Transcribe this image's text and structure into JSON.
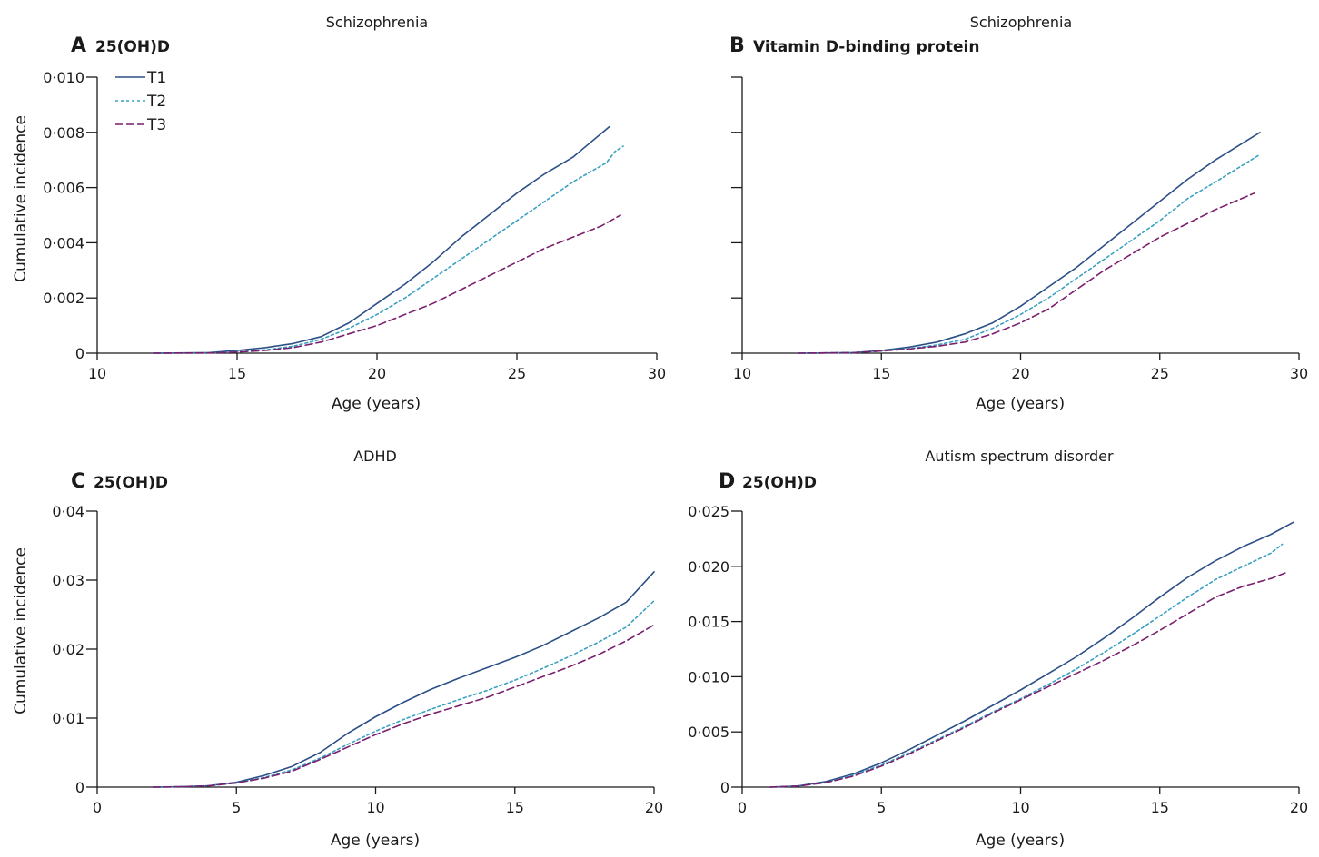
{
  "colors": {
    "T1": "#2b4f86",
    "T2": "#3aa0c2",
    "T3": "#7a1f6e",
    "axis": "#1a1a1a"
  },
  "legend": [
    {
      "label": "T1",
      "style": "solid"
    },
    {
      "label": "T2",
      "style": "dotted"
    },
    {
      "label": "T3",
      "style": "dashed"
    }
  ],
  "chart_data": [
    {
      "panel": "A",
      "type": "line",
      "title": "Schizophrenia",
      "subtitle": "25(OH)D",
      "xlabel": "Age (years)",
      "ylabel": "Cumulative incidence",
      "xlim": [
        10,
        30
      ],
      "ylim": [
        0,
        0.01
      ],
      "xticks": [
        10,
        15,
        20,
        25,
        30
      ],
      "yticks": [
        0,
        0.002,
        0.004,
        0.006,
        0.008,
        0.01
      ],
      "ytick_labels": [
        "0",
        "0·002",
        "0·004",
        "0·006",
        "0·008",
        "0·010"
      ],
      "show_ytick_labels": true,
      "show_ylabel": true,
      "show_legend": true,
      "series": [
        {
          "name": "T1",
          "x": [
            12,
            14,
            15,
            16,
            17,
            18,
            19,
            20,
            21,
            22,
            23,
            24,
            25,
            26,
            27,
            28.3
          ],
          "y": [
            0,
            2e-05,
            0.0001,
            0.0002,
            0.00035,
            0.0006,
            0.0011,
            0.0018,
            0.0025,
            0.0033,
            0.0042,
            0.005,
            0.0058,
            0.0065,
            0.0071,
            0.0082
          ]
        },
        {
          "name": "T2",
          "x": [
            12,
            14,
            15,
            16,
            17,
            18,
            19,
            20,
            21,
            22,
            23,
            24,
            25,
            26,
            27,
            28.2,
            28.5,
            28.8
          ],
          "y": [
            0,
            1e-05,
            5e-05,
            0.00012,
            0.00025,
            0.0005,
            0.0009,
            0.0014,
            0.002,
            0.0027,
            0.0034,
            0.0041,
            0.0048,
            0.0055,
            0.0062,
            0.0069,
            0.0073,
            0.0075
          ]
        },
        {
          "name": "T3",
          "x": [
            12,
            14,
            15,
            16,
            17,
            18,
            19,
            20,
            21,
            22,
            23,
            24,
            25,
            26,
            27,
            28,
            28.7
          ],
          "y": [
            0,
            1e-05,
            4e-05,
            0.0001,
            0.0002,
            0.0004,
            0.0007,
            0.001,
            0.0014,
            0.0018,
            0.0023,
            0.0028,
            0.0033,
            0.0038,
            0.0042,
            0.0046,
            0.005
          ]
        }
      ]
    },
    {
      "panel": "B",
      "type": "line",
      "title": "Schizophrenia",
      "subtitle": "Vitamin D-binding protein",
      "xlabel": "Age (years)",
      "ylabel": "",
      "xlim": [
        10,
        30
      ],
      "ylim": [
        0,
        0.01
      ],
      "xticks": [
        10,
        15,
        20,
        25,
        30
      ],
      "yticks": [
        0,
        0.002,
        0.004,
        0.006,
        0.008,
        0.01
      ],
      "ytick_labels": [],
      "show_ytick_labels": false,
      "show_ylabel": false,
      "show_legend": false,
      "series": [
        {
          "name": "T1",
          "x": [
            12,
            14,
            15,
            16,
            17,
            18,
            19,
            20,
            21,
            22,
            23,
            24,
            25,
            26,
            27,
            28.6
          ],
          "y": [
            0,
            2e-05,
            0.0001,
            0.00022,
            0.0004,
            0.0007,
            0.0011,
            0.0017,
            0.0024,
            0.0031,
            0.0039,
            0.0047,
            0.0055,
            0.0063,
            0.007,
            0.008
          ]
        },
        {
          "name": "T2",
          "x": [
            12,
            14,
            15,
            16,
            17,
            18,
            19,
            20,
            21,
            22,
            23,
            24,
            25,
            26,
            27,
            28.6
          ],
          "y": [
            0,
            2e-05,
            8e-05,
            0.00016,
            0.0003,
            0.0005,
            0.0009,
            0.0014,
            0.002,
            0.0027,
            0.0034,
            0.0041,
            0.0048,
            0.0056,
            0.0062,
            0.0072
          ]
        },
        {
          "name": "T3",
          "x": [
            12,
            14,
            15,
            16,
            17,
            18,
            19,
            20,
            21,
            22,
            23,
            24,
            25,
            26,
            27,
            28.4
          ],
          "y": [
            0,
            2e-05,
            8e-05,
            0.00015,
            0.00025,
            0.0004,
            0.0007,
            0.0011,
            0.0016,
            0.0023,
            0.003,
            0.0036,
            0.0042,
            0.0047,
            0.0052,
            0.0058
          ]
        }
      ]
    },
    {
      "panel": "C",
      "type": "line",
      "title": "ADHD",
      "subtitle": "25(OH)D",
      "xlabel": "Age (years)",
      "ylabel": "Cumulative incidence",
      "xlim": [
        0,
        20
      ],
      "ylim": [
        0,
        0.04
      ],
      "xticks": [
        0,
        5,
        10,
        15,
        20
      ],
      "yticks": [
        0,
        0.01,
        0.02,
        0.03,
        0.04
      ],
      "ytick_labels": [
        "0",
        "0·01",
        "0·02",
        "0·03",
        "0·04"
      ],
      "show_ytick_labels": true,
      "show_ylabel": true,
      "show_legend": false,
      "series": [
        {
          "name": "T1",
          "x": [
            2,
            3,
            4,
            5,
            6,
            7,
            8,
            9,
            10,
            11,
            12,
            13,
            14,
            15,
            16,
            17,
            18,
            19,
            20
          ],
          "y": [
            0,
            5e-05,
            0.0002,
            0.0007,
            0.0017,
            0.003,
            0.005,
            0.0078,
            0.0102,
            0.0123,
            0.0142,
            0.0158,
            0.0173,
            0.0188,
            0.0205,
            0.0225,
            0.0245,
            0.0268,
            0.0312
          ]
        },
        {
          "name": "T2",
          "x": [
            2,
            3,
            4,
            5,
            6,
            7,
            8,
            9,
            10,
            11,
            12,
            13,
            14,
            15,
            16,
            17,
            18,
            19,
            20
          ],
          "y": [
            0,
            5e-05,
            0.00018,
            0.0006,
            0.0014,
            0.0025,
            0.0042,
            0.0062,
            0.0081,
            0.0098,
            0.0113,
            0.0127,
            0.014,
            0.0155,
            0.0172,
            0.019,
            0.021,
            0.0232,
            0.027
          ]
        },
        {
          "name": "T3",
          "x": [
            2,
            3,
            4,
            5,
            6,
            7,
            8,
            9,
            10,
            11,
            12,
            13,
            14,
            15,
            16,
            17,
            18,
            19,
            20
          ],
          "y": [
            0,
            5e-05,
            0.00018,
            0.0006,
            0.0013,
            0.0023,
            0.004,
            0.0058,
            0.0076,
            0.0092,
            0.0106,
            0.0118,
            0.013,
            0.0145,
            0.016,
            0.0175,
            0.0192,
            0.0212,
            0.0235
          ]
        }
      ]
    },
    {
      "panel": "D",
      "type": "line",
      "title": "Autism spectrum disorder",
      "subtitle": "25(OH)D",
      "xlabel": "Age (years)",
      "ylabel": "",
      "xlim": [
        0,
        20
      ],
      "ylim": [
        0,
        0.025
      ],
      "xticks": [
        0,
        5,
        10,
        15,
        20
      ],
      "yticks": [
        0,
        0.005,
        0.01,
        0.015,
        0.02,
        0.025
      ],
      "ytick_labels": [
        "0",
        "0·005",
        "0·010",
        "0·015",
        "0·020",
        "0·025"
      ],
      "show_ytick_labels": true,
      "show_ylabel": false,
      "show_legend": false,
      "series": [
        {
          "name": "T1",
          "x": [
            1,
            2,
            3,
            4,
            5,
            6,
            7,
            8,
            9,
            10,
            11,
            12,
            13,
            14,
            15,
            16,
            17,
            18,
            19,
            19.8
          ],
          "y": [
            0,
            0.0001,
            0.0005,
            0.0012,
            0.0022,
            0.0034,
            0.0047,
            0.006,
            0.0074,
            0.0088,
            0.0103,
            0.0118,
            0.0135,
            0.0153,
            0.0172,
            0.019,
            0.0205,
            0.0218,
            0.0229,
            0.024
          ]
        },
        {
          "name": "T2",
          "x": [
            1,
            2,
            3,
            4,
            5,
            6,
            7,
            8,
            9,
            10,
            11,
            12,
            13,
            14,
            15,
            16,
            17,
            18,
            19,
            19.4
          ],
          "y": [
            0,
            0.0001,
            0.0004,
            0.0011,
            0.002,
            0.0031,
            0.0043,
            0.0055,
            0.0068,
            0.008,
            0.0093,
            0.0107,
            0.0122,
            0.0138,
            0.0155,
            0.0172,
            0.0188,
            0.02,
            0.0212,
            0.022
          ]
        },
        {
          "name": "T3",
          "x": [
            1,
            2,
            3,
            4,
            5,
            6,
            7,
            8,
            9,
            10,
            11,
            12,
            13,
            14,
            15,
            16,
            17,
            18,
            19,
            19.5
          ],
          "y": [
            0,
            0.0001,
            0.0004,
            0.001,
            0.0019,
            0.003,
            0.0042,
            0.0054,
            0.0067,
            0.0079,
            0.0091,
            0.0103,
            0.0115,
            0.0128,
            0.0142,
            0.0157,
            0.0172,
            0.0182,
            0.0189,
            0.0194
          ]
        }
      ]
    }
  ]
}
